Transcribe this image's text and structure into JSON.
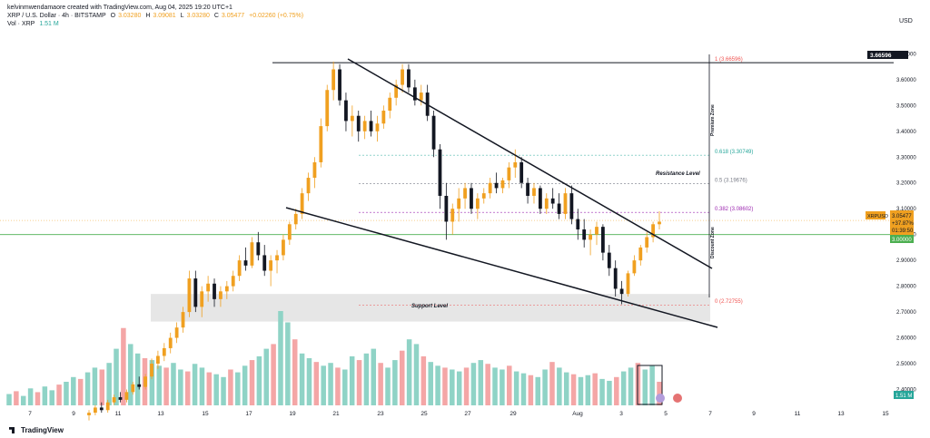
{
  "header": {
    "credit": "kelvinmwendamaore created with TradingView.com, Aug 04, 2025 19:20 UTC+1",
    "symbol": "XRP / U.S. Dollar · 4h · BITSTAMP",
    "o_label": "O",
    "o_value": "3.03280",
    "h_label": "H",
    "h_value": "3.09081",
    "l_label": "L",
    "l_value": "3.03280",
    "c_label": "C",
    "c_value": "3.05477",
    "change": "+0.02260 (+0.75%)",
    "vol_label": "Vol · XRP",
    "vol_value": "1.51 M"
  },
  "currency": "USD",
  "logo_text": "TradingView",
  "colors": {
    "up": "#f0a020",
    "down": "#131722",
    "vol_up": "#8fd3c6",
    "vol_down": "#f4a6a6",
    "green": "#4caf50",
    "fib_red": "#ef5350",
    "fib_purple": "#9c27b0",
    "fib_gray": "#787b86",
    "price_tag": "#f0a020",
    "support_zone": "#e6e6e6"
  },
  "chart_data": {
    "type": "candlestick",
    "timeframe": "4h",
    "x_ticks": [
      "7",
      "9",
      "11",
      "13",
      "15",
      "17",
      "19",
      "21",
      "23",
      "25",
      "27",
      "29",
      "Aug",
      "3",
      "5",
      "7",
      "9",
      "11",
      "13",
      "15"
    ],
    "y_ticks": [
      "3.70000",
      "3.60000",
      "3.50000",
      "3.40000",
      "3.30000",
      "3.20000",
      "3.10000",
      "3.00000",
      "2.90000",
      "2.80000",
      "2.70000",
      "2.60000",
      "2.50000",
      "2.40000"
    ],
    "ylim": [
      2.335,
      3.74
    ],
    "fib_levels": [
      {
        "label": "1 (3.66596)",
        "value": 3.66596
      },
      {
        "label": "0.618 (3.30749)",
        "value": 3.30749
      },
      {
        "label": "0.5 (3.19676)",
        "value": 3.19676
      },
      {
        "label": "0.382 (3.08602)",
        "value": 3.08602
      },
      {
        "label": "0 (2.72755)",
        "value": 2.72755
      }
    ],
    "annotations": {
      "resistance": "Resistance Level",
      "support": "Support Level",
      "premium": "Premium Zone",
      "discount": "Discount Zone"
    },
    "price_tags": {
      "high": "3.66596",
      "symbol": "XRPUSD",
      "last": "3.05477",
      "change_pct": "+37.87%",
      "countdown": "01:39:50",
      "level": "3.00000",
      "volume": "1.51 M"
    },
    "support_zone": [
      2.663,
      2.77
    ],
    "level_line": 3.0,
    "candles": [
      [
        2.3,
        2.32,
        2.28,
        2.31
      ],
      [
        2.31,
        2.34,
        2.3,
        2.33
      ],
      [
        2.33,
        2.35,
        2.31,
        2.32
      ],
      [
        2.32,
        2.36,
        2.31,
        2.35
      ],
      [
        2.35,
        2.38,
        2.34,
        2.37
      ],
      [
        2.37,
        2.39,
        2.35,
        2.36
      ],
      [
        2.36,
        2.4,
        2.35,
        2.39
      ],
      [
        2.39,
        2.43,
        2.38,
        2.42
      ],
      [
        2.42,
        2.45,
        2.4,
        2.41
      ],
      [
        2.41,
        2.46,
        2.4,
        2.45
      ],
      [
        2.45,
        2.52,
        2.44,
        2.5
      ],
      [
        2.5,
        2.55,
        2.48,
        2.53
      ],
      [
        2.53,
        2.58,
        2.51,
        2.56
      ],
      [
        2.56,
        2.62,
        2.54,
        2.6
      ],
      [
        2.6,
        2.66,
        2.58,
        2.64
      ],
      [
        2.64,
        2.72,
        2.62,
        2.7
      ],
      [
        2.7,
        2.86,
        2.68,
        2.83
      ],
      [
        2.83,
        2.86,
        2.7,
        2.72
      ],
      [
        2.72,
        2.8,
        2.68,
        2.78
      ],
      [
        2.78,
        2.84,
        2.74,
        2.81
      ],
      [
        2.81,
        2.83,
        2.72,
        2.75
      ],
      [
        2.75,
        2.8,
        2.72,
        2.78
      ],
      [
        2.78,
        2.82,
        2.75,
        2.8
      ],
      [
        2.8,
        2.86,
        2.78,
        2.84
      ],
      [
        2.84,
        2.92,
        2.82,
        2.9
      ],
      [
        2.9,
        2.95,
        2.86,
        2.88
      ],
      [
        2.88,
        2.99,
        2.87,
        2.97
      ],
      [
        2.97,
        3.01,
        2.9,
        2.92
      ],
      [
        2.92,
        2.96,
        2.84,
        2.86
      ],
      [
        2.86,
        2.92,
        2.8,
        2.9
      ],
      [
        2.9,
        2.94,
        2.85,
        2.92
      ],
      [
        2.92,
        3.0,
        2.9,
        2.98
      ],
      [
        2.98,
        3.05,
        2.96,
        3.04
      ],
      [
        3.04,
        3.1,
        3.02,
        3.08
      ],
      [
        3.08,
        3.18,
        3.06,
        3.16
      ],
      [
        3.16,
        3.24,
        3.13,
        3.22
      ],
      [
        3.22,
        3.3,
        3.18,
        3.28
      ],
      [
        3.28,
        3.45,
        3.26,
        3.42
      ],
      [
        3.42,
        3.58,
        3.4,
        3.56
      ],
      [
        3.56,
        3.67,
        3.52,
        3.64
      ],
      [
        3.64,
        3.66,
        3.5,
        3.52
      ],
      [
        3.52,
        3.55,
        3.4,
        3.44
      ],
      [
        3.44,
        3.5,
        3.38,
        3.46
      ],
      [
        3.46,
        3.48,
        3.36,
        3.4
      ],
      [
        3.4,
        3.46,
        3.37,
        3.44
      ],
      [
        3.44,
        3.48,
        3.38,
        3.4
      ],
      [
        3.4,
        3.46,
        3.36,
        3.43
      ],
      [
        3.43,
        3.5,
        3.41,
        3.48
      ],
      [
        3.48,
        3.55,
        3.45,
        3.53
      ],
      [
        3.53,
        3.6,
        3.5,
        3.58
      ],
      [
        3.58,
        3.66,
        3.55,
        3.64
      ],
      [
        3.64,
        3.66,
        3.55,
        3.57
      ],
      [
        3.57,
        3.6,
        3.5,
        3.52
      ],
      [
        3.52,
        3.58,
        3.5,
        3.55
      ],
      [
        3.55,
        3.58,
        3.44,
        3.46
      ],
      [
        3.46,
        3.48,
        3.3,
        3.33
      ],
      [
        3.33,
        3.35,
        3.1,
        3.15
      ],
      [
        3.15,
        3.2,
        2.98,
        3.05
      ],
      [
        3.05,
        3.12,
        3.0,
        3.1
      ],
      [
        3.1,
        3.18,
        3.05,
        3.14
      ],
      [
        3.14,
        3.2,
        3.1,
        3.18
      ],
      [
        3.18,
        3.2,
        3.08,
        3.1
      ],
      [
        3.1,
        3.16,
        3.06,
        3.14
      ],
      [
        3.14,
        3.18,
        3.12,
        3.16
      ],
      [
        3.16,
        3.22,
        3.14,
        3.2
      ],
      [
        3.2,
        3.24,
        3.16,
        3.18
      ],
      [
        3.18,
        3.22,
        3.16,
        3.21
      ],
      [
        3.21,
        3.28,
        3.18,
        3.26
      ],
      [
        3.26,
        3.33,
        3.22,
        3.28
      ],
      [
        3.28,
        3.3,
        3.18,
        3.2
      ],
      [
        3.2,
        3.22,
        3.12,
        3.15
      ],
      [
        3.15,
        3.2,
        3.12,
        3.18
      ],
      [
        3.18,
        3.19,
        3.08,
        3.1
      ],
      [
        3.1,
        3.16,
        3.08,
        3.14
      ],
      [
        3.14,
        3.18,
        3.1,
        3.12
      ],
      [
        3.12,
        3.16,
        3.06,
        3.08
      ],
      [
        3.08,
        3.18,
        3.06,
        3.16
      ],
      [
        3.16,
        3.19,
        3.04,
        3.06
      ],
      [
        3.06,
        3.1,
        2.98,
        3.02
      ],
      [
        3.02,
        3.06,
        2.95,
        2.98
      ],
      [
        2.98,
        3.02,
        2.92,
        3.0
      ],
      [
        3.0,
        3.05,
        2.96,
        3.03
      ],
      [
        3.03,
        3.04,
        2.9,
        2.93
      ],
      [
        2.93,
        2.96,
        2.84,
        2.87
      ],
      [
        2.87,
        2.9,
        2.76,
        2.79
      ],
      [
        2.79,
        2.82,
        2.73,
        2.77
      ],
      [
        2.77,
        2.86,
        2.76,
        2.85
      ],
      [
        2.85,
        2.92,
        2.84,
        2.9
      ],
      [
        2.9,
        2.96,
        2.88,
        2.95
      ],
      [
        2.95,
        3.01,
        2.93,
        2.99
      ],
      [
        2.99,
        3.05,
        2.97,
        3.04
      ],
      [
        3.04,
        3.09,
        3.02,
        3.05
      ]
    ],
    "volumes": [
      12,
      15,
      10,
      18,
      14,
      20,
      16,
      22,
      25,
      30,
      28,
      35,
      40,
      38,
      45,
      60,
      82,
      65,
      55,
      50,
      48,
      42,
      40,
      45,
      38,
      36,
      44,
      40,
      35,
      33,
      30,
      38,
      35,
      42,
      48,
      52,
      60,
      65,
      100,
      88,
      70,
      55,
      50,
      46,
      42,
      45,
      40,
      38,
      52,
      48,
      55,
      60,
      45,
      40,
      48,
      58,
      70,
      65,
      52,
      46,
      42,
      40,
      38,
      36,
      40,
      45,
      48,
      44,
      40,
      38,
      42,
      36,
      34,
      32,
      30,
      38,
      46,
      40,
      35,
      33,
      30,
      32,
      34,
      28,
      26,
      30,
      36,
      40,
      45,
      38,
      42,
      25
    ]
  }
}
